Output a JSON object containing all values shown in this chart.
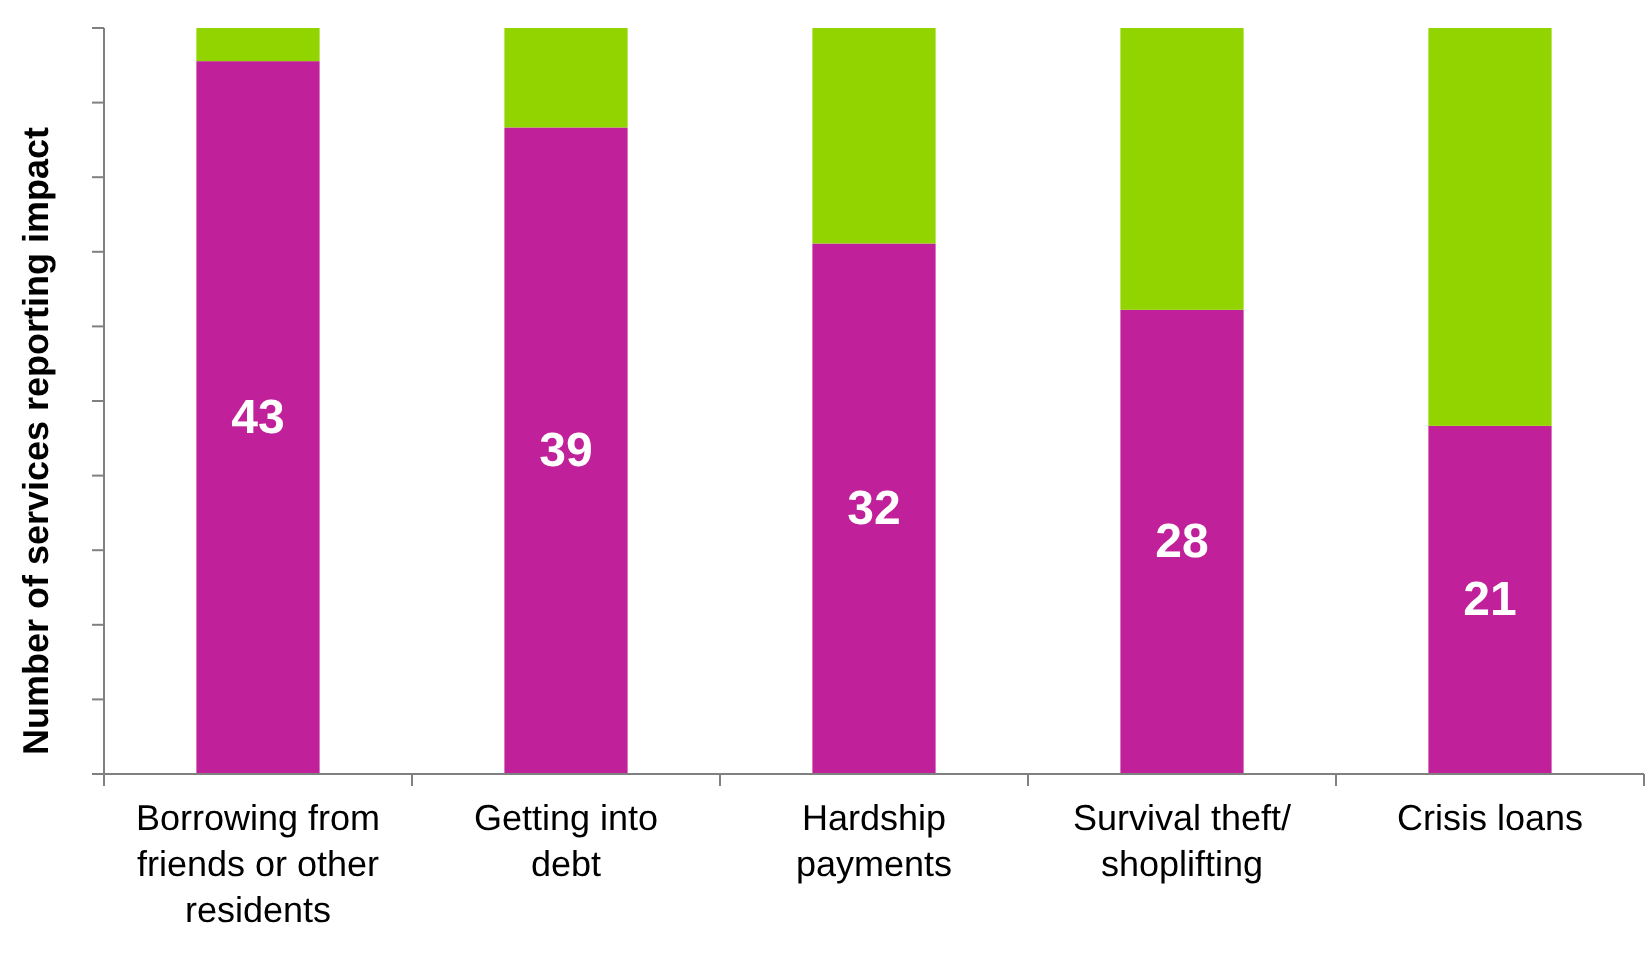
{
  "chart_data": {
    "type": "bar",
    "stacked": true,
    "ylabel": "Number of services reporting impact",
    "categories": [
      "Borrowing from friends or other residents",
      "Getting into debt",
      "Hardship payments",
      "Survival theft/shoplifting",
      "Crisis loans"
    ],
    "series": [
      {
        "color": "#c0209a",
        "values": [
          43,
          39,
          32,
          28,
          21
        ],
        "value_labels": [
          "43",
          "39",
          "32",
          "28",
          "21"
        ]
      },
      {
        "color": "#92d400",
        "values": [
          2,
          6,
          13,
          17,
          24
        ]
      }
    ],
    "ylim": [
      0,
      45
    ],
    "yticks": [
      {
        "value": 0,
        "label": null
      },
      {
        "value": 4.5,
        "label": null
      },
      {
        "value": 9,
        "label": null
      },
      {
        "value": 13.5,
        "label": null
      },
      {
        "value": 18,
        "label": null
      },
      {
        "value": 22.5,
        "label": null
      },
      {
        "value": 27,
        "label": null
      },
      {
        "value": 31.5,
        "label": null
      },
      {
        "value": 36,
        "label": null
      },
      {
        "value": 40.5,
        "label": null
      },
      {
        "value": 45,
        "label": null
      }
    ],
    "tick_labels": "x",
    "grid": false
  }
}
